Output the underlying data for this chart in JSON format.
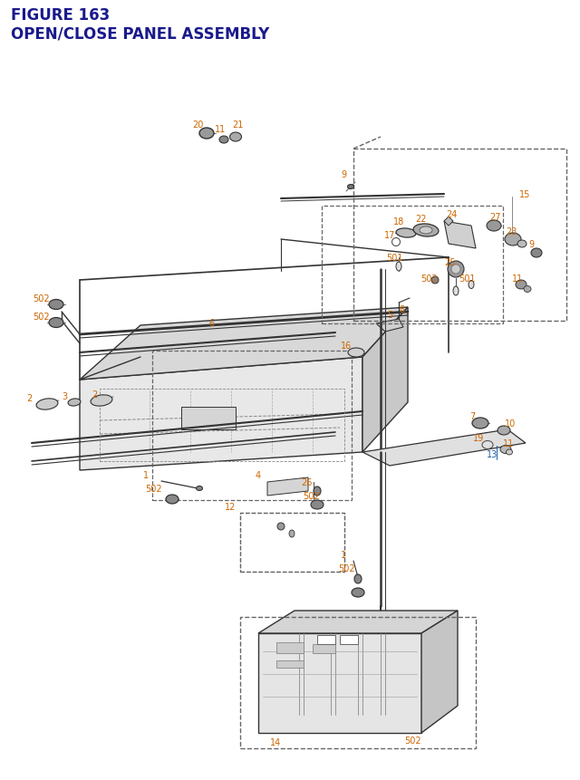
{
  "title_line1": "FIGURE 163",
  "title_line2": "OPEN/CLOSE PANEL ASSEMBLY",
  "title_color": "#1a1a8c",
  "title_fontsize": 12,
  "bg_color": "#ffffff",
  "lc": "#333333",
  "orange": "#cc6600",
  "blue": "#1a5fa8",
  "fs": 7.0
}
